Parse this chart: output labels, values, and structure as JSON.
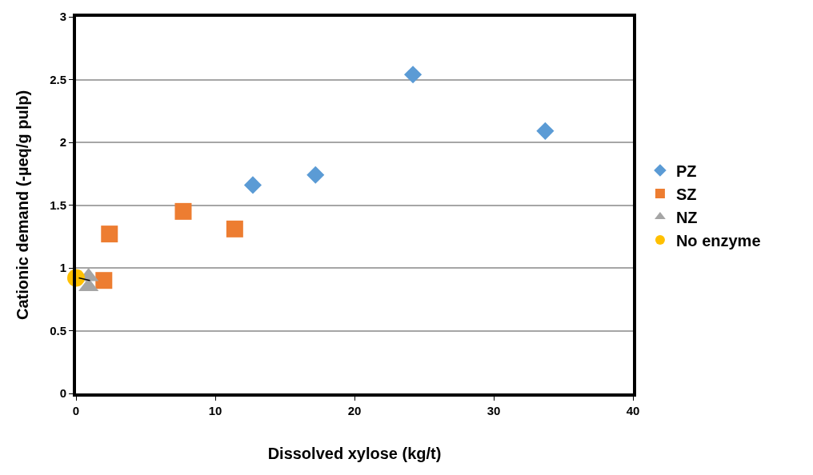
{
  "chart_data": {
    "type": "scatter",
    "xlabel": "Dissolved xylose (kg/t)",
    "ylabel": "Cationic demand (-µeq/g pulp)",
    "xlim": [
      0,
      40
    ],
    "xticks": [
      0,
      10,
      20,
      30,
      40
    ],
    "ylim": [
      0,
      3
    ],
    "yticks": [
      0,
      0.5,
      1,
      1.5,
      2,
      2.5,
      3
    ],
    "grid": "y",
    "legend": "right",
    "series": [
      {
        "name": "PZ",
        "color": "#5b9bd5",
        "marker": "diamond",
        "x": [
          12.7,
          17.2,
          24.2,
          33.7
        ],
        "values": [
          1.66,
          1.74,
          2.54,
          2.09
        ]
      },
      {
        "name": "SZ",
        "color": "#ed7d31",
        "marker": "square",
        "x": [
          2.0,
          2.4,
          7.7,
          11.4
        ],
        "values": [
          0.9,
          1.27,
          1.45,
          1.31
        ]
      },
      {
        "name": "NZ",
        "color": "#a5a5a5",
        "marker": "triangle",
        "x": [
          0.9,
          0.9
        ],
        "values": [
          0.93,
          0.85
        ]
      },
      {
        "name": "No enzyme",
        "color": "#ffc000",
        "marker": "circle",
        "x": [
          0
        ],
        "values": [
          0.92
        ]
      },
      {
        "type": "line",
        "color": "#000000",
        "x": [
          0.2,
          1.0
        ],
        "values": [
          0.92,
          0.9
        ]
      }
    ]
  }
}
